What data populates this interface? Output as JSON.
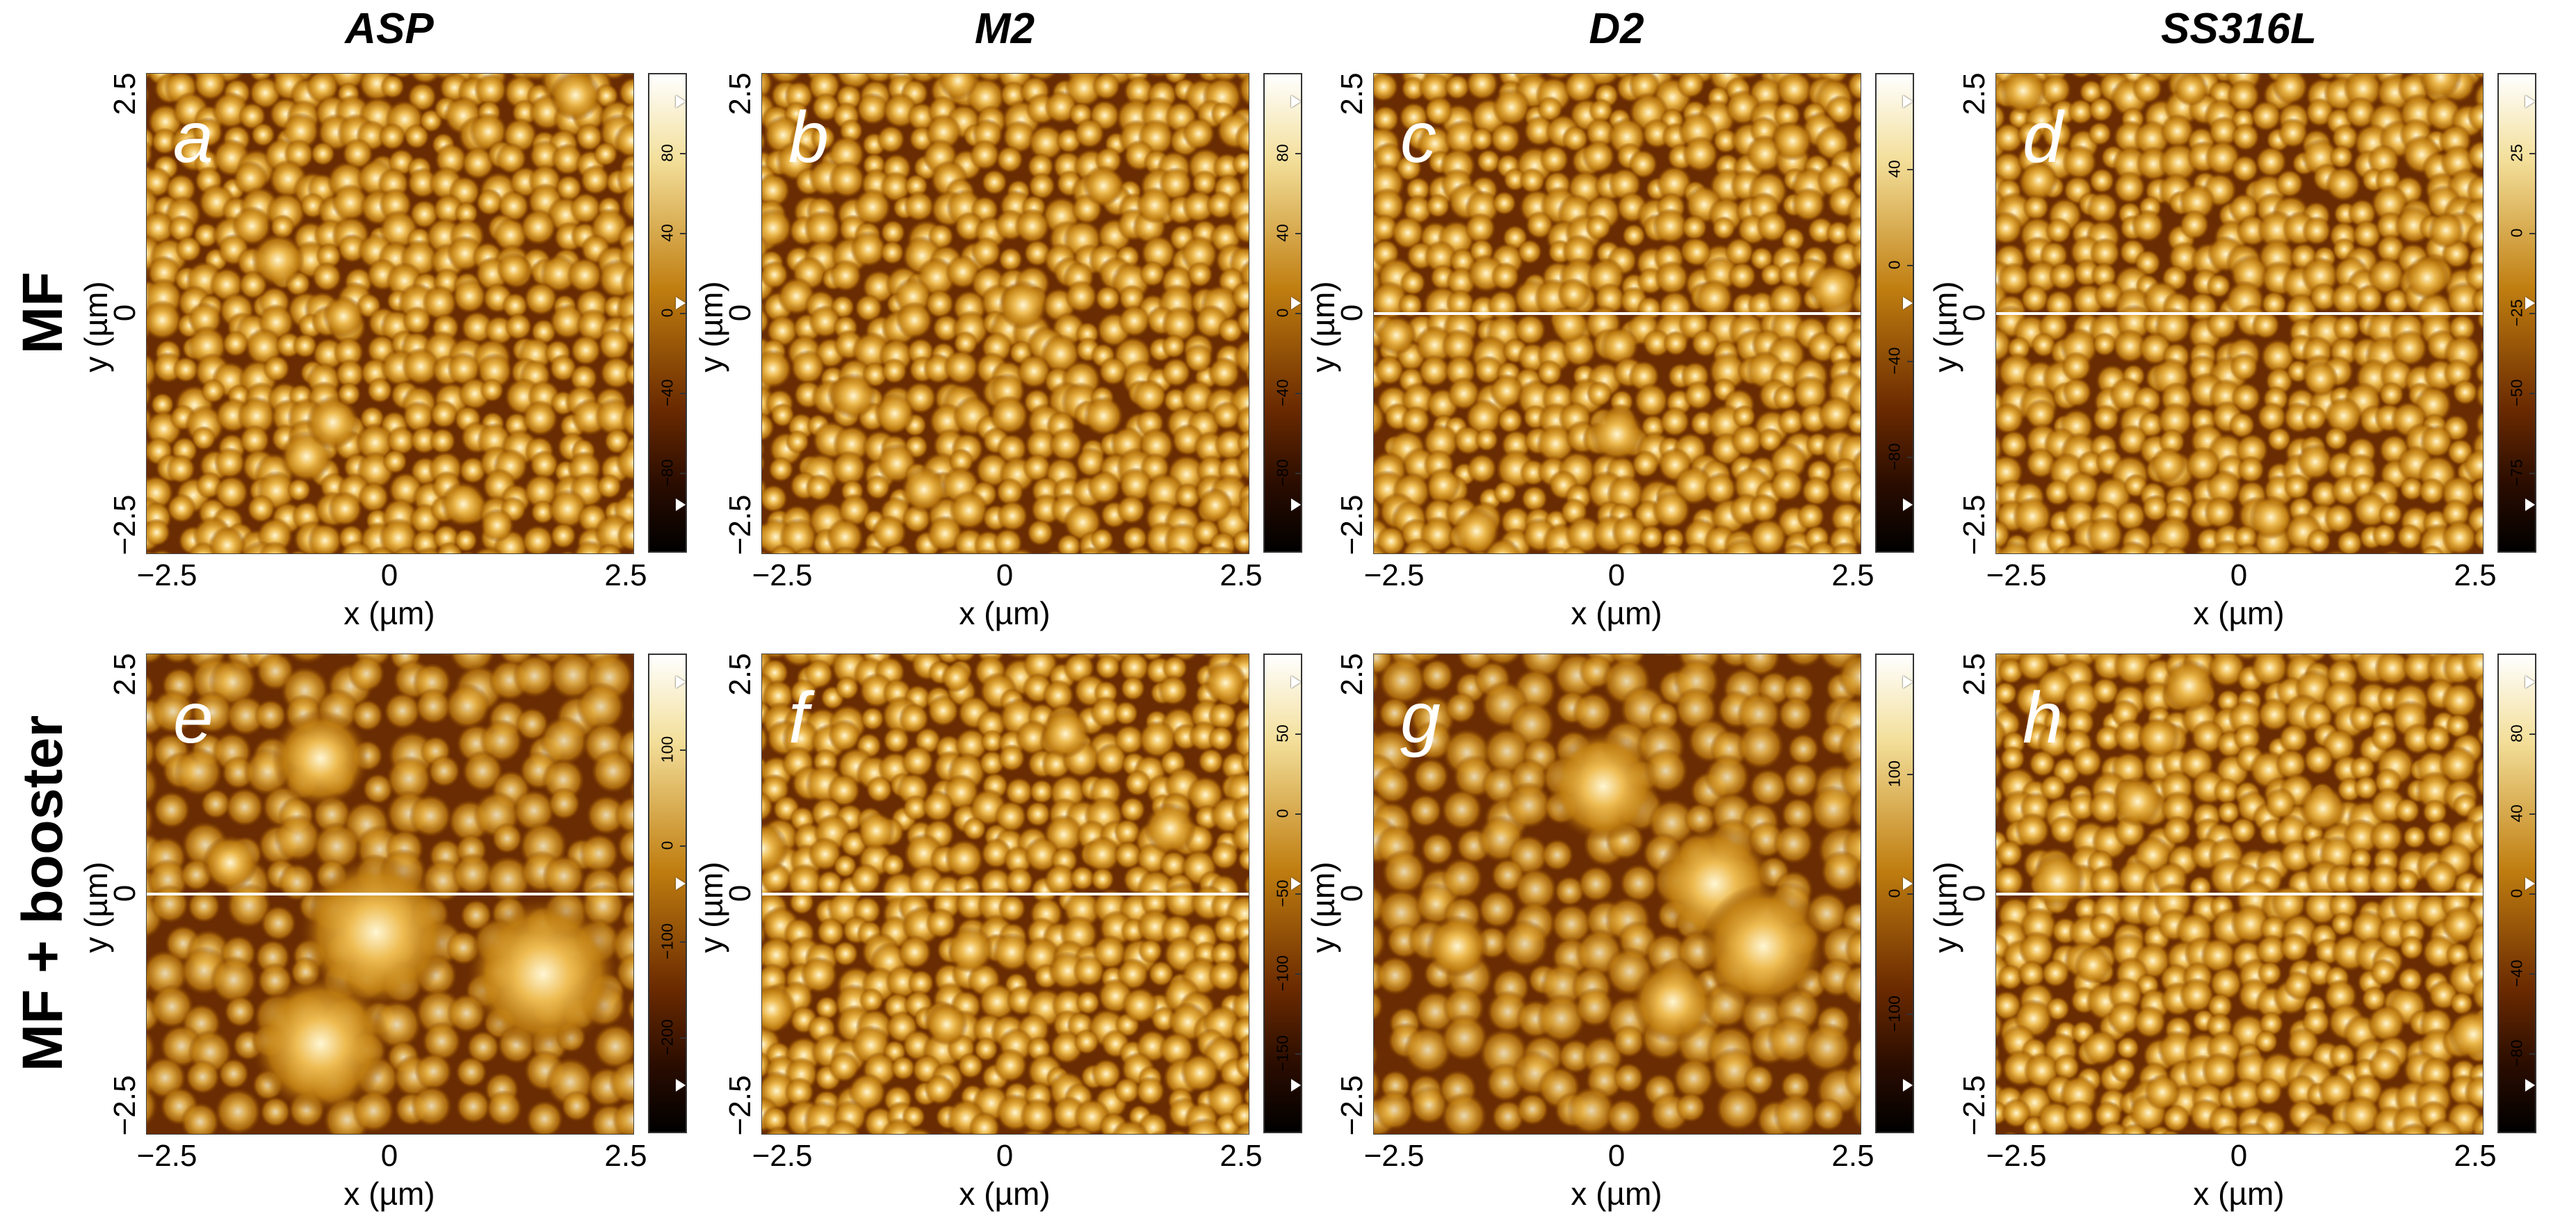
{
  "figure": {
    "column_titles": [
      "ASP",
      "M2",
      "D2",
      "SS316L"
    ],
    "row_titles": [
      "MF",
      "MF + booster"
    ],
    "axis": {
      "x_label": "x (µm)",
      "y_label": "y (µm)",
      "x_ticks": [
        "−2.5",
        "0",
        "2.5"
      ],
      "y_ticks": [
        "−2.5",
        "0",
        "2.5"
      ]
    },
    "colors": {
      "low": "#000000",
      "mid_dark": "#6b2a00",
      "mid": "#c07e10",
      "high": "#f3df9a",
      "peak": "#ffffff",
      "scan_line": "#ffffff"
    },
    "panels": [
      {
        "letter": "a",
        "row": 0,
        "col": 0,
        "scale_ticks": [
          "80",
          "40",
          "0",
          "−40",
          "−80"
        ],
        "scan_line": false,
        "grain": "fine"
      },
      {
        "letter": "b",
        "row": 0,
        "col": 1,
        "scale_ticks": [
          "80",
          "40",
          "0",
          "−40",
          "−80"
        ],
        "scan_line": false,
        "grain": "fine"
      },
      {
        "letter": "c",
        "row": 0,
        "col": 2,
        "scale_ticks": [
          "40",
          "0",
          "−40",
          "−80"
        ],
        "scan_line": true,
        "grain": "fine"
      },
      {
        "letter": "d",
        "row": 0,
        "col": 3,
        "scale_ticks": [
          "25",
          "0",
          "−25",
          "−50",
          "−75"
        ],
        "scan_line": true,
        "grain": "fine"
      },
      {
        "letter": "e",
        "row": 1,
        "col": 0,
        "scale_ticks": [
          "100",
          "0",
          "−100",
          "−200"
        ],
        "scan_line": true,
        "grain": "coarse"
      },
      {
        "letter": "f",
        "row": 1,
        "col": 1,
        "scale_ticks": [
          "50",
          "0",
          "−50",
          "−100",
          "−150"
        ],
        "scan_line": true,
        "grain": "fine"
      },
      {
        "letter": "g",
        "row": 1,
        "col": 2,
        "scale_ticks": [
          "100",
          "0",
          "−100"
        ],
        "scan_line": false,
        "grain": "coarse"
      },
      {
        "letter": "h",
        "row": 1,
        "col": 3,
        "scale_ticks": [
          "80",
          "40",
          "0",
          "−40",
          "−80"
        ],
        "scan_line": true,
        "grain": "fine"
      }
    ]
  }
}
